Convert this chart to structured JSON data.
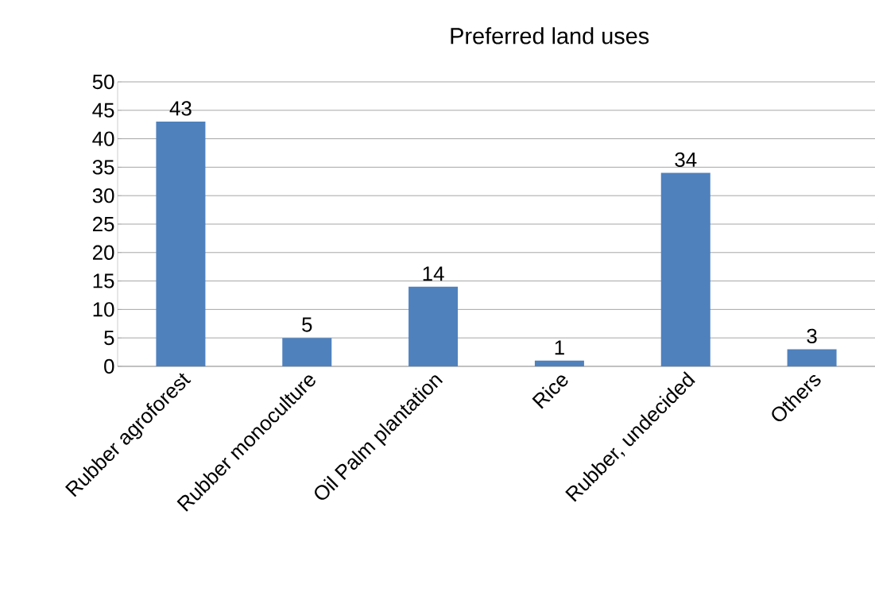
{
  "chart_data": {
    "type": "bar",
    "title": "Preferred land uses",
    "categories": [
      "Rubber agroforest",
      "Rubber monoculture",
      "Oil Palm plantation",
      "Rice",
      "Rubber, undecided",
      "Others"
    ],
    "values": [
      43,
      5,
      14,
      1,
      34,
      3
    ],
    "color": "#4f81bd",
    "ylim": [
      0,
      50
    ],
    "yticks": [
      0,
      5,
      10,
      15,
      20,
      25,
      30,
      35,
      40,
      45,
      50
    ],
    "grid": "y",
    "data_labels": true
  }
}
